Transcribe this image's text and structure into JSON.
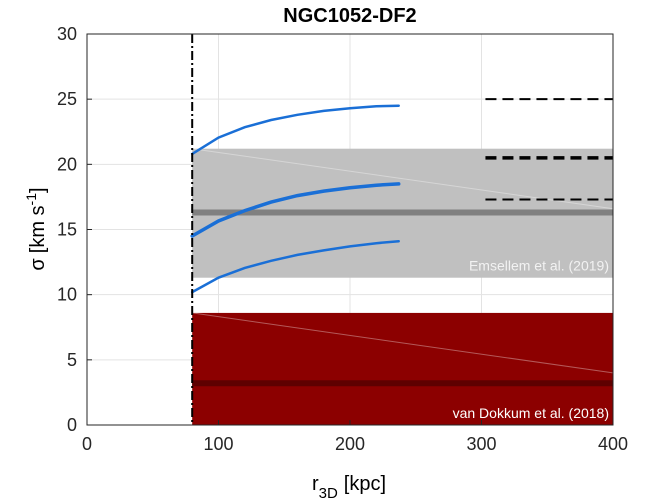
{
  "chart_data": {
    "type": "line",
    "title": "NGC1052-DF2",
    "xlabel": "r",
    "xlabel_sub": "3D",
    "xlabel_unit": "[kpc]",
    "ylabel_symbol": "σ",
    "ylabel_unit": "[km s",
    "ylabel_sup": "-1",
    "ylabel_close": "]",
    "xlim": [
      0,
      400
    ],
    "ylim": [
      0,
      30
    ],
    "xticks": [
      0,
      100,
      200,
      300,
      400
    ],
    "yticks": [
      0,
      5,
      10,
      15,
      20,
      25,
      30
    ],
    "grid": true,
    "vertical_line": {
      "x": 80,
      "style": "dash-dot",
      "color": "#000000"
    },
    "bands": [
      {
        "label": "Emsellem et al. (2019)",
        "x": [
          80,
          400
        ],
        "low": 11.3,
        "high": 21.2,
        "center": 16.3,
        "fill": "#c0c0c0",
        "center_color": "#808080",
        "label_color": "#f2f2f2"
      },
      {
        "label": "van Dokkum et al. (2018)",
        "x": [
          80,
          400
        ],
        "low": 0,
        "high": 8.6,
        "center": 3.2,
        "fill": "#8c0000",
        "center_color": "#5e0000",
        "label_color": "#ffffff"
      }
    ],
    "series": [
      {
        "color": "#1a6fd6",
        "width": 2.5,
        "x": [
          80,
          100,
          120,
          140,
          160,
          180,
          200,
          220,
          237
        ],
        "y": [
          10.2,
          11.3,
          12.05,
          12.6,
          13.05,
          13.4,
          13.7,
          13.95,
          14.1
        ]
      },
      {
        "color": "#1a6fd6",
        "width": 3.5,
        "x": [
          80,
          100,
          120,
          140,
          160,
          180,
          200,
          220,
          237
        ],
        "y": [
          14.5,
          15.65,
          16.45,
          17.1,
          17.6,
          17.95,
          18.2,
          18.4,
          18.5
        ]
      },
      {
        "color": "#1a6fd6",
        "width": 2.5,
        "x": [
          80,
          100,
          120,
          140,
          160,
          180,
          200,
          220,
          237
        ],
        "y": [
          20.8,
          22.05,
          22.85,
          23.4,
          23.8,
          24.1,
          24.3,
          24.45,
          24.5
        ]
      }
    ],
    "reference_lines": [
      {
        "y": 25.0,
        "x": [
          303,
          400
        ],
        "width": 2,
        "style": "dashed"
      },
      {
        "y": 20.5,
        "x": [
          303,
          400
        ],
        "width": 3.5,
        "style": "dashed"
      },
      {
        "y": 17.3,
        "x": [
          303,
          400
        ],
        "width": 2,
        "style": "dashed"
      }
    ]
  }
}
